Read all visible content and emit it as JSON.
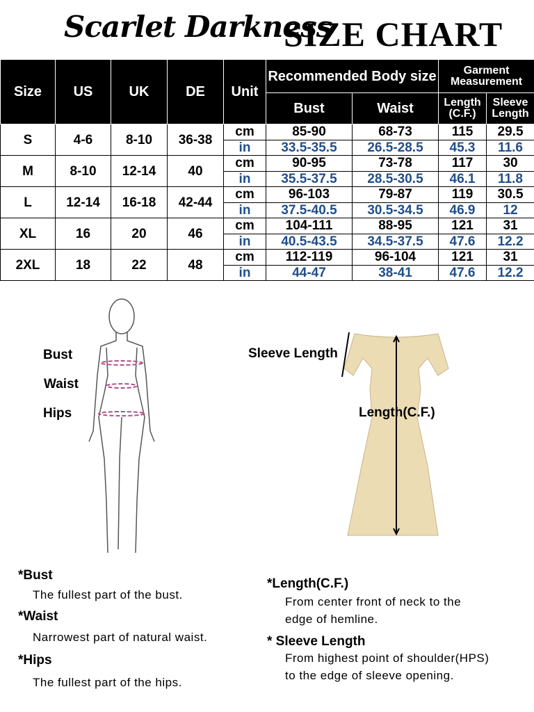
{
  "header": {
    "brand": "Scarlet Darkness",
    "title": "SIZE CHART"
  },
  "table": {
    "headers": {
      "size": "Size",
      "us": "US",
      "uk": "UK",
      "de": "DE",
      "unit": "Unit",
      "body": "Recommended Body size",
      "garment": "Garment Measurement",
      "bust": "Bust",
      "waist": "Waist",
      "length": "Length (C.F.)",
      "sleeve": "Sleeve Length"
    },
    "rows": [
      {
        "size": "S",
        "us": "4-6",
        "uk": "8-10",
        "de": "36-38",
        "cm": {
          "unit": "cm",
          "bust": "85-90",
          "waist": "68-73",
          "length": "115",
          "sleeve": "29.5"
        },
        "in": {
          "unit": "in",
          "bust": "33.5-35.5",
          "waist": "26.5-28.5",
          "length": "45.3",
          "sleeve": "11.6"
        }
      },
      {
        "size": "M",
        "us": "8-10",
        "uk": "12-14",
        "de": "40",
        "cm": {
          "unit": "cm",
          "bust": "90-95",
          "waist": "73-78",
          "length": "117",
          "sleeve": "30"
        },
        "in": {
          "unit": "in",
          "bust": "35.5-37.5",
          "waist": "28.5-30.5",
          "length": "46.1",
          "sleeve": "11.8"
        }
      },
      {
        "size": "L",
        "us": "12-14",
        "uk": "16-18",
        "de": "42-44",
        "cm": {
          "unit": "cm",
          "bust": "96-103",
          "waist": "79-87",
          "length": "119",
          "sleeve": "30.5"
        },
        "in": {
          "unit": "in",
          "bust": "37.5-40.5",
          "waist": "30.5-34.5",
          "length": "46.9",
          "sleeve": "12"
        }
      },
      {
        "size": "XL",
        "us": "16",
        "uk": "20",
        "de": "46",
        "cm": {
          "unit": "cm",
          "bust": "104-111",
          "waist": "88-95",
          "length": "121",
          "sleeve": "31"
        },
        "in": {
          "unit": "in",
          "bust": "40.5-43.5",
          "waist": "34.5-37.5",
          "length": "47.6",
          "sleeve": "12.2"
        }
      },
      {
        "size": "2XL",
        "us": "18",
        "uk": "22",
        "de": "48",
        "cm": {
          "unit": "cm",
          "bust": "112-119",
          "waist": "96-104",
          "length": "121",
          "sleeve": "31"
        },
        "in": {
          "unit": "in",
          "bust": "44-47",
          "waist": "38-41",
          "length": "47.6",
          "sleeve": "12.2"
        }
      }
    ],
    "colors": {
      "in_text": "#1f4e8c",
      "header_bg": "#000000"
    }
  },
  "figure_labels": {
    "bust": "Bust",
    "waist": "Waist",
    "hips": "Hips",
    "sleeve": "Sleeve Length",
    "length": "Length(C.F.)"
  },
  "notes": {
    "bust": {
      "title": "*Bust",
      "desc": "The fullest part of the bust."
    },
    "waist": {
      "title": "*Waist",
      "desc": "Narrowest part of natural waist."
    },
    "hips": {
      "title": "*Hips",
      "desc": "The fullest part of the hips."
    },
    "length": {
      "title": "*Length(C.F.)",
      "desc1": "From center front of neck to the",
      "desc2": "edge of hemline."
    },
    "sleeve": {
      "title": "* Sleeve Length",
      "desc1": "From highest point of shoulder(HPS)",
      "desc2": "to the edge of sleeve opening."
    }
  }
}
